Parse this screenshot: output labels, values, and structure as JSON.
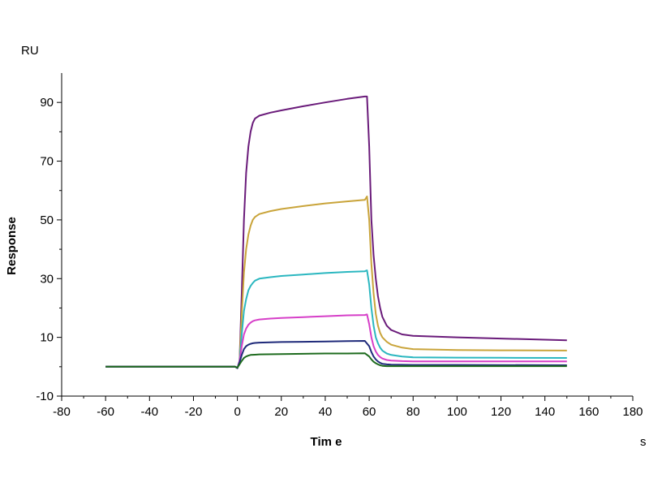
{
  "chart_data": {
    "type": "line",
    "title": "",
    "xlabel": "Tim e",
    "ylabel": "Response",
    "x_unit": "s",
    "y_unit": "RU",
    "xlim": [
      -80,
      180
    ],
    "ylim": [
      -10,
      100
    ],
    "x_ticks": [
      -80,
      -60,
      -40,
      -20,
      0,
      20,
      40,
      60,
      80,
      100,
      120,
      140,
      160,
      180
    ],
    "y_ticks": [
      -10,
      10,
      30,
      50,
      70,
      90
    ],
    "grid": false,
    "legend": "none",
    "series": [
      {
        "color": "#6a1b7a",
        "points": [
          [
            -60,
            0
          ],
          [
            -40,
            0
          ],
          [
            -20,
            0
          ],
          [
            -1,
            0
          ],
          [
            0,
            -0.5
          ],
          [
            1,
            2
          ],
          [
            2,
            25
          ],
          [
            3,
            50
          ],
          [
            4,
            66
          ],
          [
            5,
            75
          ],
          [
            6,
            80
          ],
          [
            7,
            83
          ],
          [
            8,
            84.5
          ],
          [
            10,
            85.5
          ],
          [
            15,
            86.5
          ],
          [
            20,
            87.3
          ],
          [
            30,
            88.7
          ],
          [
            40,
            90
          ],
          [
            50,
            91.2
          ],
          [
            58,
            92
          ],
          [
            59,
            92
          ],
          [
            60,
            75
          ],
          [
            61,
            50
          ],
          [
            62,
            38
          ],
          [
            63,
            30
          ],
          [
            64,
            24
          ],
          [
            65,
            20
          ],
          [
            66,
            17
          ],
          [
            68,
            14
          ],
          [
            70,
            12.5
          ],
          [
            75,
            11
          ],
          [
            80,
            10.5
          ],
          [
            100,
            10
          ],
          [
            120,
            9.6
          ],
          [
            140,
            9.2
          ],
          [
            150,
            9
          ]
        ]
      },
      {
        "color": "#c9a43a",
        "points": [
          [
            -60,
            0
          ],
          [
            -40,
            0
          ],
          [
            -20,
            0
          ],
          [
            -1,
            0
          ],
          [
            0,
            -0.5
          ],
          [
            1,
            2
          ],
          [
            2,
            18
          ],
          [
            3,
            32
          ],
          [
            4,
            40
          ],
          [
            5,
            45
          ],
          [
            6,
            48
          ],
          [
            7,
            50
          ],
          [
            8,
            51
          ],
          [
            10,
            52
          ],
          [
            15,
            53
          ],
          [
            20,
            53.7
          ],
          [
            30,
            54.7
          ],
          [
            40,
            55.6
          ],
          [
            50,
            56.3
          ],
          [
            58,
            56.8
          ],
          [
            59,
            58
          ],
          [
            60,
            50
          ],
          [
            61,
            35
          ],
          [
            62,
            25
          ],
          [
            63,
            18
          ],
          [
            64,
            14
          ],
          [
            65,
            11.5
          ],
          [
            66,
            10
          ],
          [
            68,
            8.5
          ],
          [
            70,
            7.5
          ],
          [
            75,
            6.5
          ],
          [
            80,
            6
          ],
          [
            100,
            5.7
          ],
          [
            120,
            5.6
          ],
          [
            150,
            5.5
          ]
        ]
      },
      {
        "color": "#2bb7c0",
        "points": [
          [
            -60,
            0
          ],
          [
            -40,
            0
          ],
          [
            -20,
            0
          ],
          [
            -1,
            0
          ],
          [
            0,
            -0.5
          ],
          [
            1,
            2
          ],
          [
            2,
            11
          ],
          [
            3,
            19
          ],
          [
            4,
            23
          ],
          [
            5,
            26
          ],
          [
            6,
            27.5
          ],
          [
            7,
            28.5
          ],
          [
            8,
            29.3
          ],
          [
            10,
            30
          ],
          [
            15,
            30.5
          ],
          [
            20,
            30.9
          ],
          [
            30,
            31.4
          ],
          [
            40,
            31.9
          ],
          [
            50,
            32.3
          ],
          [
            58,
            32.5
          ],
          [
            59,
            32.8
          ],
          [
            60,
            28
          ],
          [
            61,
            20
          ],
          [
            62,
            14
          ],
          [
            63,
            10
          ],
          [
            64,
            8
          ],
          [
            65,
            6.5
          ],
          [
            66,
            5.5
          ],
          [
            68,
            4.5
          ],
          [
            70,
            4
          ],
          [
            75,
            3.5
          ],
          [
            80,
            3.2
          ],
          [
            100,
            3.1
          ],
          [
            120,
            3.05
          ],
          [
            150,
            3
          ]
        ]
      },
      {
        "color": "#d63fc8",
        "points": [
          [
            -60,
            0
          ],
          [
            -40,
            0
          ],
          [
            -20,
            0
          ],
          [
            -1,
            0
          ],
          [
            0,
            -0.5
          ],
          [
            1,
            2
          ],
          [
            2,
            7
          ],
          [
            3,
            11
          ],
          [
            4,
            13
          ],
          [
            5,
            14.3
          ],
          [
            6,
            15
          ],
          [
            7,
            15.5
          ],
          [
            8,
            15.8
          ],
          [
            10,
            16.1
          ],
          [
            15,
            16.4
          ],
          [
            20,
            16.6
          ],
          [
            30,
            16.9
          ],
          [
            40,
            17.2
          ],
          [
            50,
            17.5
          ],
          [
            58,
            17.6
          ],
          [
            59,
            17.8
          ],
          [
            60,
            14.5
          ],
          [
            61,
            10
          ],
          [
            62,
            7
          ],
          [
            63,
            5.2
          ],
          [
            64,
            4
          ],
          [
            65,
            3.3
          ],
          [
            66,
            2.8
          ],
          [
            68,
            2.3
          ],
          [
            70,
            2.1
          ],
          [
            75,
            1.9
          ],
          [
            80,
            1.8
          ],
          [
            100,
            1.8
          ],
          [
            150,
            1.8
          ]
        ]
      },
      {
        "color": "#1f2a7a",
        "points": [
          [
            -60,
            0
          ],
          [
            -40,
            0
          ],
          [
            -20,
            0
          ],
          [
            -1,
            0
          ],
          [
            0,
            -0.5
          ],
          [
            1,
            1.5
          ],
          [
            2,
            4
          ],
          [
            3,
            6
          ],
          [
            4,
            7
          ],
          [
            5,
            7.5
          ],
          [
            6,
            7.8
          ],
          [
            7,
            8
          ],
          [
            8,
            8.1
          ],
          [
            10,
            8.2
          ],
          [
            20,
            8.4
          ],
          [
            30,
            8.5
          ],
          [
            40,
            8.6
          ],
          [
            50,
            8.7
          ],
          [
            58,
            8.8
          ],
          [
            60,
            7
          ],
          [
            61,
            5
          ],
          [
            62,
            3.5
          ],
          [
            63,
            2.5
          ],
          [
            64,
            1.8
          ],
          [
            65,
            1.3
          ],
          [
            66,
            1
          ],
          [
            68,
            0.8
          ],
          [
            70,
            0.7
          ],
          [
            80,
            0.6
          ],
          [
            100,
            0.6
          ],
          [
            150,
            0.5
          ]
        ]
      },
      {
        "color": "#1e6b1e",
        "points": [
          [
            -60,
            0
          ],
          [
            -40,
            0
          ],
          [
            -20,
            0
          ],
          [
            -1,
            0
          ],
          [
            0,
            -0.3
          ],
          [
            1,
            0.8
          ],
          [
            2,
            2
          ],
          [
            3,
            3
          ],
          [
            4,
            3.5
          ],
          [
            5,
            3.8
          ],
          [
            6,
            4
          ],
          [
            8,
            4.1
          ],
          [
            10,
            4.2
          ],
          [
            20,
            4.3
          ],
          [
            30,
            4.4
          ],
          [
            40,
            4.5
          ],
          [
            50,
            4.5
          ],
          [
            58,
            4.6
          ],
          [
            60,
            3.5
          ],
          [
            61,
            2.5
          ],
          [
            62,
            1.7
          ],
          [
            63,
            1.2
          ],
          [
            64,
            0.8
          ],
          [
            65,
            0.5
          ],
          [
            66,
            0.3
          ],
          [
            68,
            0.2
          ],
          [
            70,
            0.2
          ],
          [
            80,
            0.2
          ],
          [
            150,
            0.2
          ]
        ]
      }
    ]
  }
}
